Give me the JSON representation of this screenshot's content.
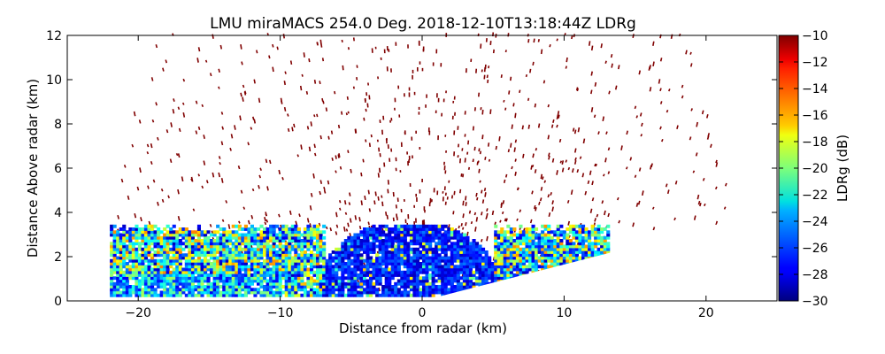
{
  "chart_data": {
    "type": "heatmap",
    "title": "LMU miraMACS 254.0 Deg. 2018-12-10T13:18:44Z  LDRg",
    "xlabel": "Distance from radar (km)",
    "ylabel": "Distance Above radar  (km)",
    "xlim": [
      -25,
      25
    ],
    "ylim": [
      0,
      12
    ],
    "xticks": [
      -20,
      -10,
      0,
      10,
      20
    ],
    "xtick_labels": [
      "−20",
      "−10",
      "0",
      "10",
      "20"
    ],
    "yticks": [
      0,
      2,
      4,
      6,
      8,
      10,
      12
    ],
    "ytick_labels": [
      "0",
      "2",
      "4",
      "6",
      "8",
      "10",
      "12"
    ],
    "colorbar": {
      "label": "LDRg (dB)",
      "range": [
        -30,
        -10
      ],
      "ticks": [
        -10,
        -12,
        -14,
        -16,
        -18,
        -20,
        -22,
        -24,
        -26,
        -28,
        -30
      ],
      "tick_labels": [
        "−10",
        "−12",
        "−14",
        "−16",
        "−18",
        "−20",
        "−22",
        "−24",
        "−26",
        "−28",
        "−30"
      ],
      "colormap": "jet"
    },
    "features": {
      "scan_azimuth_deg": 254.0,
      "cloud_layer_top_km": 3.2,
      "cloud_core_x_range_km": [
        -7,
        5
      ],
      "cloud_core_ldr_db": -28,
      "low_level_x_range_km": [
        -22,
        13
      ],
      "sparse_noise_ldr_db": -10,
      "max_range_km": 22
    }
  }
}
